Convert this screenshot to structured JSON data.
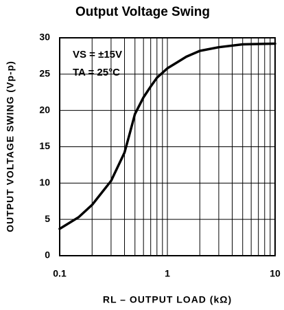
{
  "chart_data": {
    "type": "line",
    "title": "Output Voltage Swing",
    "xlabel": "RL – OUTPUT LOAD (kΩ)",
    "ylabel": "OUTPUT VOLTAGE SWING (Vp-p)",
    "annotations": [
      "VS = ±15V",
      "TA = 25°C"
    ],
    "xscale": "log",
    "grid": true,
    "color": "#000000",
    "x": [
      0.1,
      0.15,
      0.2,
      0.3,
      0.4,
      0.45,
      0.5,
      0.6,
      0.7,
      0.8,
      1,
      1.5,
      2,
      3,
      5,
      10
    ],
    "series": [
      {
        "name": "VS = ±15V",
        "color": "#000000",
        "values": [
          3.7,
          5.3,
          7,
          10.3,
          14.2,
          17,
          19.5,
          21.8,
          23.3,
          24.5,
          25.8,
          27.4,
          28.2,
          28.7,
          29.1,
          29.2
        ]
      }
    ],
    "xlim": [
      0.1,
      10
    ],
    "xticks": [
      0.1,
      1,
      10
    ],
    "x_minor_gridlines": [
      0.2,
      0.3,
      0.4,
      0.5,
      0.6,
      0.7,
      0.8,
      0.9,
      2,
      3,
      4,
      5,
      6,
      7,
      8,
      9
    ],
    "ylim": [
      0,
      30
    ],
    "yticks": [
      0,
      5,
      10,
      15,
      20,
      25,
      30
    ]
  }
}
